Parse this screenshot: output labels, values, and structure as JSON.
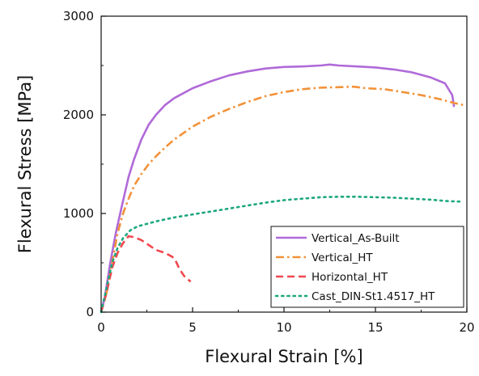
{
  "chart_data": {
    "type": "line",
    "xlabel": "Flexural Strain [%]",
    "ylabel": "Flexural Stress [MPa]",
    "xlim": [
      0,
      20
    ],
    "ylim": [
      0,
      3000
    ],
    "xticks": [
      0,
      5,
      10,
      15,
      20
    ],
    "yticks": [
      0,
      1000,
      2000,
      3000
    ],
    "grid": false,
    "legend_position": "bottom-right",
    "series": [
      {
        "name": "Vertical_As-Built",
        "color": "#b06ad8",
        "dash": "solid",
        "points": [
          [
            0,
            0
          ],
          [
            0.2,
            150
          ],
          [
            0.5,
            500
          ],
          [
            0.8,
            800
          ],
          [
            1.1,
            1050
          ],
          [
            1.35,
            1250
          ],
          [
            1.5,
            1370
          ],
          [
            1.8,
            1550
          ],
          [
            2.2,
            1750
          ],
          [
            2.6,
            1900
          ],
          [
            3,
            2000
          ],
          [
            3.5,
            2100
          ],
          [
            4,
            2170
          ],
          [
            5,
            2270
          ],
          [
            6,
            2340
          ],
          [
            7,
            2400
          ],
          [
            8,
            2440
          ],
          [
            9,
            2470
          ],
          [
            10,
            2485
          ],
          [
            11,
            2490
          ],
          [
            12,
            2500
          ],
          [
            12.5,
            2510
          ],
          [
            13,
            2500
          ],
          [
            14,
            2490
          ],
          [
            15,
            2480
          ],
          [
            16,
            2460
          ],
          [
            17,
            2430
          ],
          [
            18,
            2380
          ],
          [
            18.8,
            2320
          ],
          [
            19.2,
            2200
          ],
          [
            19.3,
            2080
          ]
        ]
      },
      {
        "name": "Vertical_HT",
        "color": "#f2923a",
        "dash": "dashdot",
        "points": [
          [
            0,
            0
          ],
          [
            0.3,
            200
          ],
          [
            0.6,
            500
          ],
          [
            0.9,
            800
          ],
          [
            1.2,
            1000
          ],
          [
            1.5,
            1150
          ],
          [
            1.8,
            1280
          ],
          [
            2.2,
            1400
          ],
          [
            2.6,
            1500
          ],
          [
            3,
            1580
          ],
          [
            3.5,
            1670
          ],
          [
            4,
            1750
          ],
          [
            5,
            1880
          ],
          [
            6,
            1980
          ],
          [
            7,
            2060
          ],
          [
            8,
            2130
          ],
          [
            9,
            2190
          ],
          [
            10,
            2230
          ],
          [
            11,
            2260
          ],
          [
            12,
            2275
          ],
          [
            13,
            2280
          ],
          [
            13.8,
            2285
          ],
          [
            14.5,
            2270
          ],
          [
            15.5,
            2260
          ],
          [
            16.5,
            2230
          ],
          [
            17.5,
            2200
          ],
          [
            18.5,
            2160
          ],
          [
            19.3,
            2120
          ],
          [
            19.8,
            2100
          ]
        ]
      },
      {
        "name": "Horizontal_HT",
        "color": "#f0484f",
        "dash": "dash",
        "points": [
          [
            0,
            0
          ],
          [
            0.3,
            200
          ],
          [
            0.6,
            450
          ],
          [
            0.9,
            600
          ],
          [
            1.2,
            700
          ],
          [
            1.5,
            770
          ],
          [
            1.8,
            760
          ],
          [
            2.2,
            730
          ],
          [
            2.6,
            680
          ],
          [
            3,
            630
          ],
          [
            3.5,
            600
          ],
          [
            3.9,
            560
          ],
          [
            4.1,
            510
          ],
          [
            4.3,
            430
          ],
          [
            4.6,
            350
          ],
          [
            4.9,
            310
          ]
        ]
      },
      {
        "name": "Cast_DIN-St1.4517_HT",
        "color": "#1ca77e",
        "dash": "dot",
        "points": [
          [
            0,
            0
          ],
          [
            0.3,
            250
          ],
          [
            0.6,
            500
          ],
          [
            0.9,
            650
          ],
          [
            1.2,
            750
          ],
          [
            1.6,
            830
          ],
          [
            2,
            870
          ],
          [
            3,
            920
          ],
          [
            4,
            960
          ],
          [
            5,
            990
          ],
          [
            6,
            1020
          ],
          [
            7,
            1050
          ],
          [
            8,
            1080
          ],
          [
            9,
            1110
          ],
          [
            10,
            1135
          ],
          [
            11,
            1150
          ],
          [
            12,
            1165
          ],
          [
            13,
            1170
          ],
          [
            14,
            1170
          ],
          [
            15,
            1165
          ],
          [
            16,
            1160
          ],
          [
            17,
            1150
          ],
          [
            18,
            1140
          ],
          [
            19,
            1125
          ],
          [
            19.8,
            1120
          ]
        ]
      }
    ]
  }
}
